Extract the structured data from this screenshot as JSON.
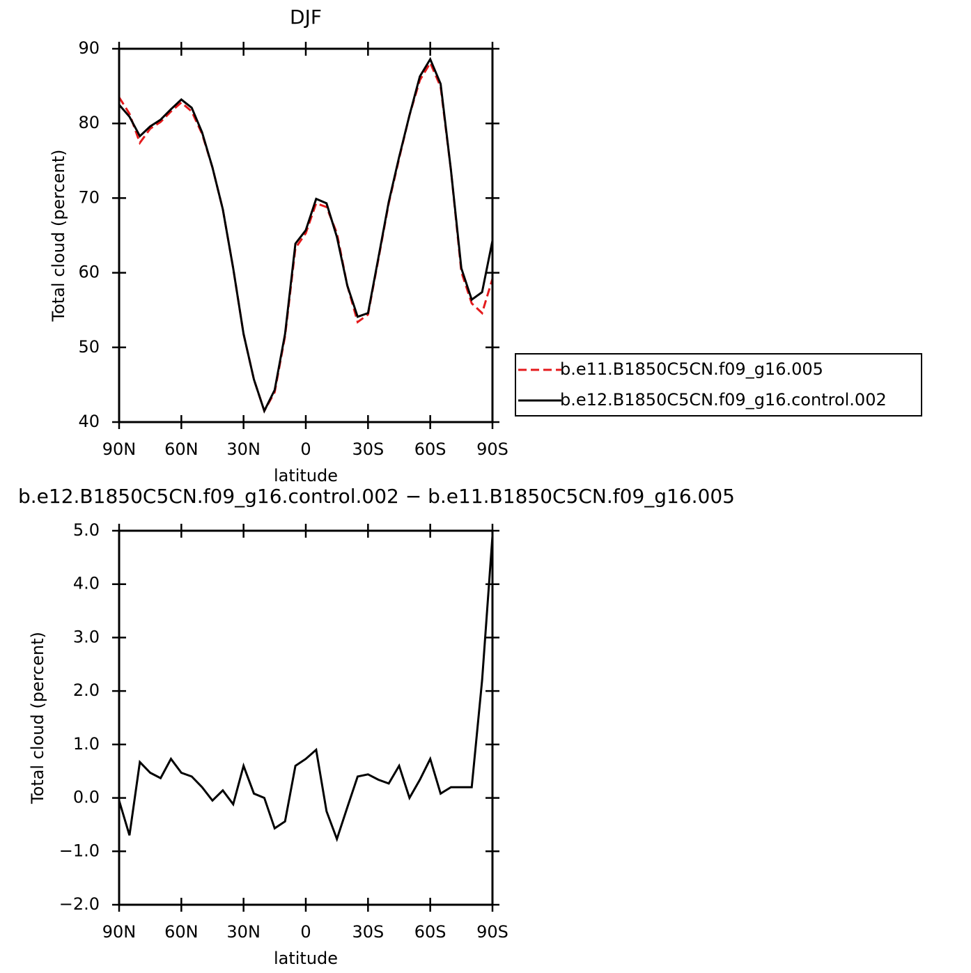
{
  "chart_data": [
    {
      "type": "line",
      "title": "DJF",
      "x_label": "latitude",
      "y_label": "Total cloud (percent)",
      "x": [
        90,
        85,
        80,
        75,
        70,
        65,
        60,
        55,
        50,
        45,
        40,
        35,
        30,
        25,
        20,
        15,
        10,
        5,
        0,
        -5,
        -10,
        -15,
        -20,
        -25,
        -30,
        -35,
        -40,
        -45,
        -50,
        -55,
        -60,
        -65,
        -70,
        -75,
        -80,
        -85,
        -90
      ],
      "xlim": [
        90,
        -90
      ],
      "xticks": [
        {
          "value": 90,
          "label": "90N"
        },
        {
          "value": 60,
          "label": "60N"
        },
        {
          "value": 30,
          "label": "30N"
        },
        0,
        {
          "value": -30,
          "label": "30S"
        },
        {
          "value": -60,
          "label": "60S"
        },
        {
          "value": -90,
          "label": "90S"
        }
      ],
      "ylim": [
        40,
        90
      ],
      "yticks": [
        40,
        50,
        60,
        70,
        80,
        90
      ],
      "legend": "right",
      "series": [
        {
          "name": "b.e11.B1850C5CN.f09_g16.005",
          "color": "#e41a1c",
          "dash": true,
          "values": [
            83.5,
            81.3,
            77.4,
            79.3,
            80.2,
            81.6,
            82.8,
            81.6,
            78.6,
            74.1,
            68.5,
            60.6,
            51.8,
            45.7,
            41.5,
            44.0,
            51.5,
            63.3,
            65.3,
            69.3,
            68.8,
            65.3,
            58.3,
            53.4,
            54.4,
            61.8,
            69.3,
            75.3,
            81.1,
            85.8,
            88.1,
            84.9,
            73.7,
            60.1,
            55.9,
            54.6,
            59.2
          ]
        },
        {
          "name": "b.e12.B1850C5CN.f09_g16.control.002",
          "color": "#000000",
          "dash": false,
          "values": [
            82.5,
            80.9,
            78.3,
            79.6,
            80.5,
            81.9,
            83.2,
            82.1,
            78.8,
            74.1,
            68.5,
            60.6,
            51.8,
            45.7,
            41.5,
            44.3,
            51.8,
            63.9,
            65.7,
            69.9,
            69.3,
            64.8,
            58.3,
            54.1,
            54.6,
            62.0,
            69.5,
            75.5,
            81.1,
            86.3,
            88.6,
            85.3,
            73.7,
            60.6,
            56.4,
            57.4,
            64.3
          ]
        }
      ]
    },
    {
      "type": "line",
      "title": "b.e12.B1850C5CN.f09_g16.control.002 − b.e11.B1850C5CN.f09_g16.005",
      "x_label": "latitude",
      "y_label": "Total cloud (percent)",
      "x": [
        90,
        85,
        80,
        75,
        70,
        65,
        60,
        55,
        50,
        45,
        40,
        35,
        30,
        25,
        20,
        15,
        10,
        5,
        0,
        -5,
        -10,
        -15,
        -20,
        -25,
        -30,
        -35,
        -40,
        -45,
        -50,
        -55,
        -60,
        -65,
        -70,
        -75,
        -80,
        -85,
        -90
      ],
      "xlim": [
        90,
        -90
      ],
      "xticks": [
        {
          "value": 90,
          "label": "90N"
        },
        {
          "value": 60,
          "label": "60N"
        },
        {
          "value": 30,
          "label": "30N"
        },
        0,
        {
          "value": -30,
          "label": "30S"
        },
        {
          "value": -60,
          "label": "60S"
        },
        {
          "value": -90,
          "label": "90S"
        }
      ],
      "ylim": [
        -2,
        5
      ],
      "yticks": [
        {
          "value": -2,
          "label": "−2.0"
        },
        {
          "value": -1,
          "label": "−1.0"
        },
        {
          "value": 0,
          "label": "0.0"
        },
        {
          "value": 1,
          "label": "1.0"
        },
        {
          "value": 2,
          "label": "2.0"
        },
        {
          "value": 3,
          "label": "3.0"
        },
        {
          "value": 4,
          "label": "4.0"
        },
        {
          "value": 5,
          "label": "5.0"
        }
      ],
      "series": [
        {
          "color": "#000000",
          "values": [
            -0.05,
            -0.7,
            0.67,
            0.47,
            0.37,
            0.73,
            0.47,
            0.4,
            0.2,
            -0.05,
            0.14,
            -0.12,
            0.6,
            0.08,
            0.0,
            -0.57,
            -0.44,
            0.6,
            0.73,
            0.9,
            -0.25,
            -0.77,
            -0.18,
            0.4,
            0.44,
            0.34,
            0.27,
            0.6,
            0.0,
            0.34,
            0.73,
            0.08,
            0.2,
            0.2,
            0.2,
            2.2,
            4.9
          ]
        }
      ]
    }
  ]
}
